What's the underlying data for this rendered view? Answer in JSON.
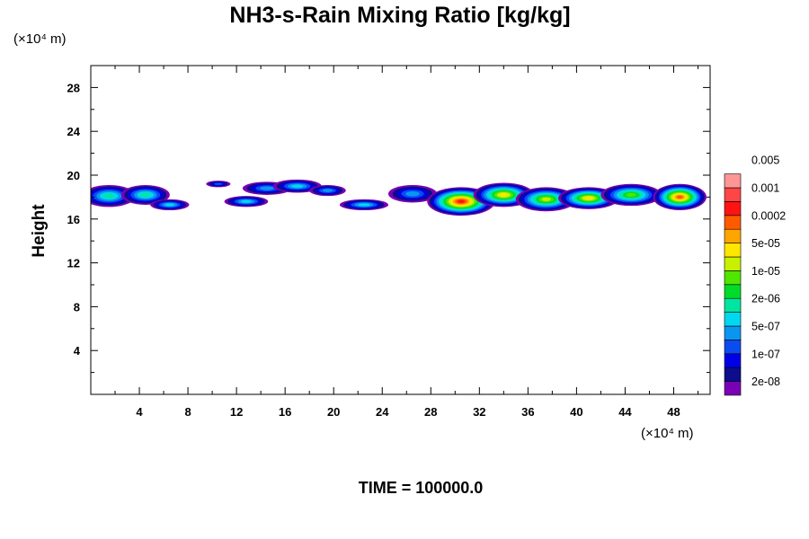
{
  "chart_data": {
    "type": "heatmap",
    "title": "NH3-s-Rain Mixing Ratio [kg/kg]",
    "ylabel": "Height",
    "x_unit_label": "(×10⁴ m)",
    "y_unit_label": "(×10⁴ m)",
    "footer": "TIME = 100000.0",
    "xlim": [
      0,
      51
    ],
    "ylim": [
      0,
      30
    ],
    "x_ticks": [
      "4",
      "8",
      "12",
      "16",
      "20",
      "24",
      "28",
      "32",
      "36",
      "40",
      "44",
      "48"
    ],
    "y_ticks": [
      "4",
      "8",
      "12",
      "16",
      "20",
      "24",
      "28"
    ],
    "colorbar": {
      "labels": [
        "0.005",
        "0.001",
        "0.0002",
        "5e-05",
        "1e-05",
        "2e-06",
        "5e-07",
        "1e-07",
        "2e-08"
      ],
      "colors": [
        "#7a00b4",
        "#0c0c8c",
        "#0000e6",
        "#0a4cf0",
        "#0a96f0",
        "#00d8f0",
        "#00e6a0",
        "#00dc28",
        "#50e600",
        "#c8f000",
        "#ffe600",
        "#ffa500",
        "#ff5a00",
        "#ff1414",
        "#ff4646",
        "#ff9696"
      ]
    },
    "cloud_layer": {
      "base_height": 16,
      "top_height": 20,
      "blobs": [
        {
          "x": 1.5,
          "y": 18.1,
          "rx": 2.2,
          "ry": 1.0,
          "level": 6
        },
        {
          "x": 4.5,
          "y": 18.2,
          "rx": 2.0,
          "ry": 0.9,
          "level": 6
        },
        {
          "x": 6.5,
          "y": 17.3,
          "rx": 1.6,
          "ry": 0.5,
          "level": 5
        },
        {
          "x": 10.5,
          "y": 19.2,
          "rx": 1.0,
          "ry": 0.3,
          "level": 3
        },
        {
          "x": 12.8,
          "y": 17.6,
          "rx": 1.8,
          "ry": 0.5,
          "level": 5
        },
        {
          "x": 14.5,
          "y": 18.8,
          "rx": 2.0,
          "ry": 0.6,
          "level": 4
        },
        {
          "x": 17.0,
          "y": 19.0,
          "rx": 2.0,
          "ry": 0.6,
          "level": 5
        },
        {
          "x": 19.5,
          "y": 18.6,
          "rx": 1.5,
          "ry": 0.5,
          "level": 4
        },
        {
          "x": 22.5,
          "y": 17.3,
          "rx": 2.0,
          "ry": 0.5,
          "level": 5
        },
        {
          "x": 26.5,
          "y": 18.3,
          "rx": 2.0,
          "ry": 0.8,
          "level": 4
        },
        {
          "x": 30.5,
          "y": 17.6,
          "rx": 2.8,
          "ry": 1.3,
          "level": 13
        },
        {
          "x": 34.0,
          "y": 18.2,
          "rx": 2.5,
          "ry": 1.1,
          "level": 10
        },
        {
          "x": 37.5,
          "y": 17.8,
          "rx": 2.5,
          "ry": 1.1,
          "level": 9
        },
        {
          "x": 41.0,
          "y": 17.9,
          "rx": 2.5,
          "ry": 1.0,
          "level": 10
        },
        {
          "x": 44.5,
          "y": 18.2,
          "rx": 2.5,
          "ry": 1.0,
          "level": 8
        },
        {
          "x": 48.5,
          "y": 18.0,
          "rx": 2.2,
          "ry": 1.2,
          "level": 12
        }
      ]
    }
  }
}
